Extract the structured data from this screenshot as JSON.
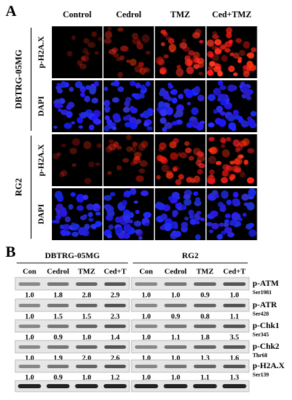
{
  "panel_a": {
    "label": "A",
    "columns": [
      "Control",
      "Cedrol",
      "TMZ",
      "Ced+TMZ"
    ],
    "groups": [
      {
        "name": "DBTRG-05MG",
        "rows": [
          "p-H2A.X",
          "DAPI"
        ]
      },
      {
        "name": "RG2",
        "rows": [
          "p-H2A.X",
          "DAPI"
        ]
      }
    ]
  },
  "panel_b": {
    "label": "B",
    "groups": [
      {
        "name": "DBTRG-05MG",
        "lanes": [
          "Con",
          "Cedrol",
          "TMZ",
          "Ced+T"
        ]
      },
      {
        "name": "RG2",
        "lanes": [
          "Con",
          "Cedrol",
          "TMZ",
          "Ced+T"
        ]
      }
    ],
    "proteins": [
      {
        "name": "p-ATM",
        "site": "Ser1981",
        "values": [
          [
            "1.0",
            "1.8",
            "2.8",
            "2.9"
          ],
          [
            "1.0",
            "1.0",
            "0.9",
            "1.0"
          ]
        ]
      },
      {
        "name": "p-ATR",
        "site": "Ser428",
        "values": [
          [
            "1.0",
            "1.5",
            "1.5",
            "2.3"
          ],
          [
            "1.0",
            "0.9",
            "0.8",
            "1.1"
          ]
        ]
      },
      {
        "name": "p-Chk1",
        "site": "Ser345",
        "values": [
          [
            "1.0",
            "0.9",
            "1.0",
            "1.4"
          ],
          [
            "1.0",
            "1.1",
            "1.8",
            "3.5"
          ]
        ]
      },
      {
        "name": "p-Chk2",
        "site": "Thr68",
        "values": [
          [
            "1.0",
            "1.9",
            "2.0",
            "2.6"
          ],
          [
            "1.0",
            "1.0",
            "1.3",
            "1.6"
          ]
        ]
      },
      {
        "name": "p-H2A.X",
        "site": "Ser139",
        "values": [
          [
            "1.0",
            "0.9",
            "1.0",
            "1.2"
          ],
          [
            "1.0",
            "1.0",
            "1.1",
            "1.3"
          ]
        ]
      }
    ]
  }
}
